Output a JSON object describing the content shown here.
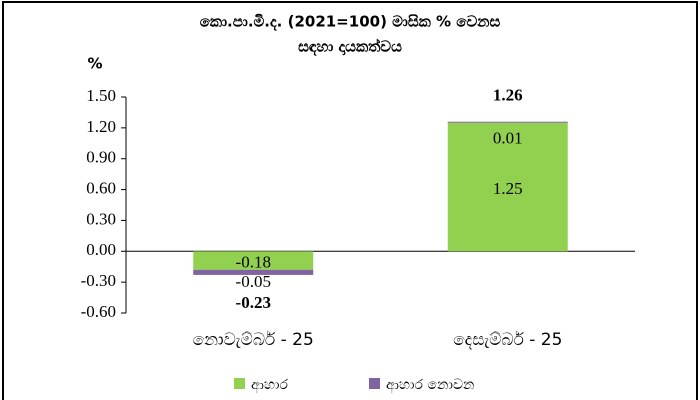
{
  "chart_data": {
    "type": "stacked_bar",
    "title": "කො.පා.මි.ද. (2021=100) මාසික % වෙනස",
    "subtitle": "සඳහා දායකත්වය",
    "y_label": "%",
    "categories": [
      "නොවැම්බර් - 25",
      "දෙසැම්බර් - 25"
    ],
    "series": [
      {
        "name": "ආහාර",
        "color": "#92d050",
        "values": [
          -0.18,
          1.25
        ]
      },
      {
        "name": "ආහාර නොවන",
        "color": "#8064a2",
        "values": [
          -0.05,
          0.01
        ]
      }
    ],
    "totals": [
      -0.23,
      1.26
    ],
    "ylim": [
      -0.6,
      1.5
    ],
    "yticks": [
      {
        "value": -0.6,
        "label": "-0.60"
      },
      {
        "value": -0.3,
        "label": "-0.30"
      },
      {
        "value": 0,
        "label": "0.00"
      },
      {
        "value": 0.3,
        "label": "0.30"
      },
      {
        "value": 0.6,
        "label": "0.60"
      },
      {
        "value": 0.9,
        "label": "0.90"
      },
      {
        "value": 1.2,
        "label": "1.20"
      },
      {
        "value": 1.5,
        "label": "1.50"
      }
    ],
    "legend": "bottom"
  }
}
